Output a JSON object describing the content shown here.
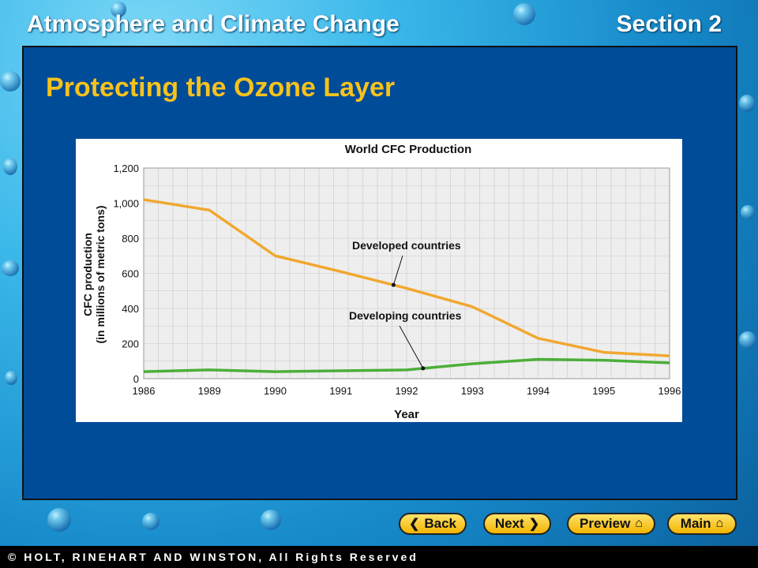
{
  "header": {
    "course_title": "Atmosphere and Climate Change",
    "section": "Section 2"
  },
  "slide": {
    "title": "Protecting the Ozone Layer"
  },
  "chart_data": {
    "type": "line",
    "title": "World CFC Production",
    "xlabel": "Year",
    "ylabel": "CFC production (in millions of metric tons)",
    "x": [
      "1986",
      "1989",
      "1990",
      "1991",
      "1992",
      "1993",
      "1994",
      "1995",
      "1996"
    ],
    "ylim": [
      0,
      1200
    ],
    "yticks": [
      "0",
      "200",
      "400",
      "600",
      "800",
      "1,000",
      "1,200"
    ],
    "grid": true,
    "series": [
      {
        "name": "Developed countries",
        "color": "#f0a830",
        "values": [
          1020,
          960,
          700,
          610,
          515,
          410,
          230,
          150,
          130
        ]
      },
      {
        "name": "Developing countries",
        "color": "#4caf3a",
        "values": [
          40,
          50,
          40,
          45,
          50,
          85,
          110,
          105,
          90
        ]
      }
    ],
    "annotations": [
      {
        "text": "Developed countries",
        "series": 0,
        "x": 1991.8
      },
      {
        "text": "Developing countries",
        "series": 1,
        "x": 1992.25
      }
    ]
  },
  "nav": {
    "back": "Back",
    "next": "Next",
    "preview": "Preview",
    "main": "Main"
  },
  "footer": {
    "copyright": "© HOLT, RINEHART AND WINSTON, All Rights Reserved"
  }
}
